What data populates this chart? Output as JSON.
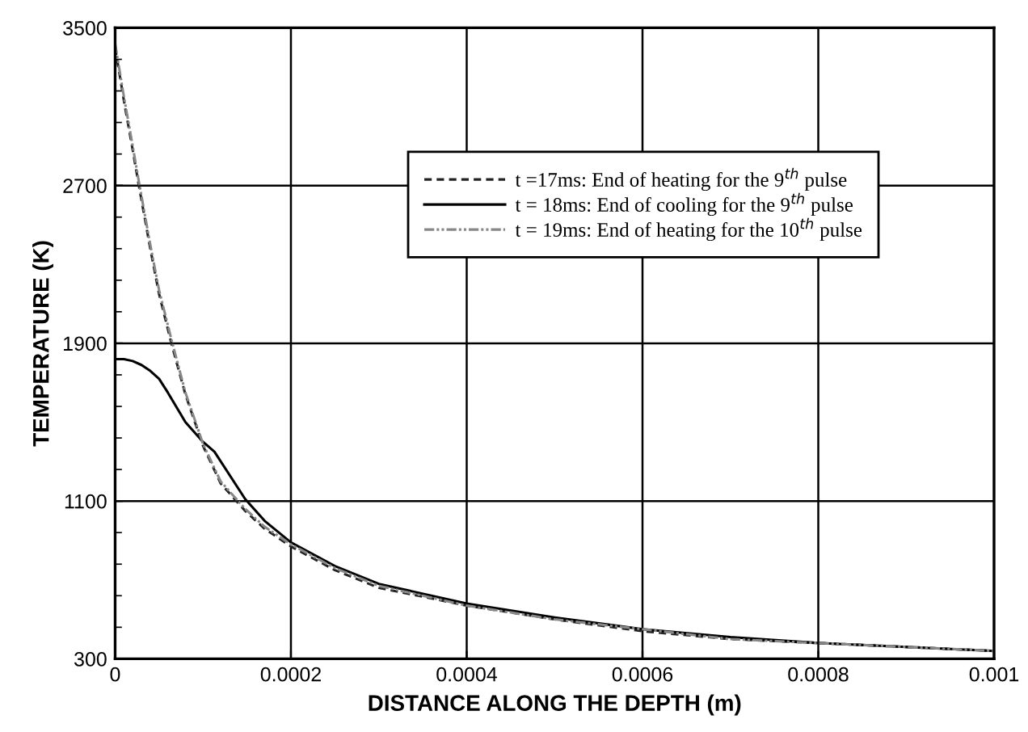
{
  "chart_data": {
    "type": "line",
    "xlabel": "DISTANCE ALONG THE DEPTH (m)",
    "ylabel": "TEMPERATURE (K)",
    "xlim": [
      0,
      0.001
    ],
    "ylim": [
      300,
      3500
    ],
    "xticks": [
      0,
      0.0002,
      0.0004,
      0.0006,
      0.0008,
      0.001
    ],
    "yticks": [
      300,
      1100,
      1900,
      2700,
      3500
    ],
    "grid": true,
    "legend": "right",
    "marker": "none",
    "series": [
      {
        "name": "t =17ms: End of heating for the 9$^{th}$ pulse",
        "color": "#222222",
        "line_style": "dashed",
        "x": [
          0,
          1e-05,
          2e-05,
          2.7e-05,
          4e-05,
          5e-05,
          6.4e-05,
          8e-05,
          0.0001,
          0.00012,
          0.000148,
          0.00017,
          0.0002,
          0.00025,
          0.0003,
          0.0004,
          0.0005,
          0.0006,
          0.0007,
          0.0008,
          0.0009,
          0.001
        ],
        "values": [
          3400,
          3130,
          2880,
          2700,
          2380,
          2150,
          1900,
          1640,
          1380,
          1190,
          1050,
          960,
          870,
          750,
          660,
          570,
          500,
          440,
          400,
          380,
          360,
          340
        ]
      },
      {
        "name": "t = 18ms: End of cooling for the 9$^{th}$ pulse",
        "color": "#000000",
        "line_style": "solid",
        "x": [
          0,
          1e-05,
          2e-05,
          3e-05,
          4e-05,
          5e-05,
          6e-05,
          8e-05,
          0.0001,
          0.000113,
          0.000148,
          0.00017,
          0.0002,
          0.00025,
          0.0003,
          0.0004,
          0.0005,
          0.0006,
          0.0007,
          0.0008,
          0.0009,
          0.001
        ],
        "values": [
          1820,
          1820,
          1810,
          1790,
          1760,
          1720,
          1650,
          1500,
          1400,
          1350,
          1110,
          1000,
          890,
          770,
          680,
          580,
          510,
          450,
          410,
          380,
          360,
          340
        ]
      },
      {
        "name": "t = 19ms: End of heating for the 10$^{th}$ pulse",
        "color": "#888888",
        "line_style": "dotted",
        "x": [
          0,
          1e-05,
          2e-05,
          2.7e-05,
          4e-05,
          5e-05,
          6.4e-05,
          8e-05,
          0.0001,
          0.00012,
          0.000148,
          0.00017,
          0.0002,
          0.00025,
          0.0003,
          0.0004,
          0.0005,
          0.0006,
          0.0007,
          0.0008,
          0.0009,
          0.001
        ],
        "values": [
          3420,
          3150,
          2900,
          2720,
          2400,
          2170,
          1920,
          1650,
          1390,
          1200,
          1060,
          970,
          880,
          760,
          670,
          570,
          500,
          450,
          400,
          380,
          360,
          340
        ]
      }
    ]
  }
}
